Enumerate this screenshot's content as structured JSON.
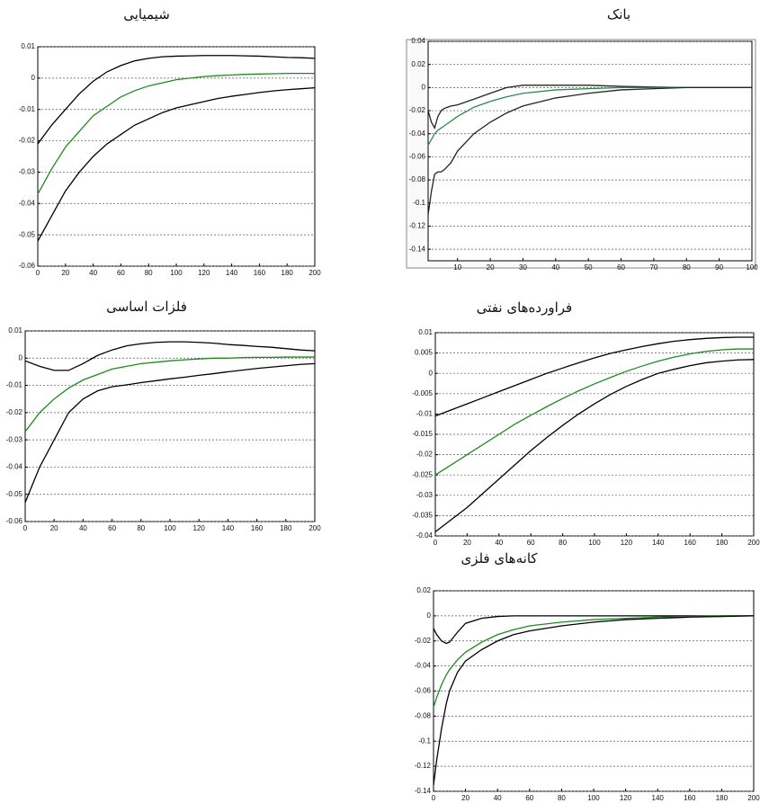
{
  "chart_data": [
    {
      "type": "line",
      "title": "شیمیایی",
      "grid": true,
      "x": [
        0,
        10,
        20,
        30,
        40,
        50,
        60,
        70,
        80,
        90,
        100,
        110,
        120,
        130,
        140,
        150,
        160,
        170,
        180,
        190,
        200
      ],
      "xlim": [
        0,
        200
      ],
      "xticks": [
        0,
        20,
        40,
        60,
        80,
        100,
        120,
        140,
        160,
        180,
        200
      ],
      "ylim": [
        -0.06,
        0.01
      ],
      "yticks": [
        -0.06,
        -0.05,
        -0.04,
        -0.03,
        -0.02,
        -0.01,
        0,
        0.01
      ],
      "series": [
        {
          "color": "#000000",
          "values": [
            -0.021,
            -0.015,
            -0.01,
            -0.005,
            -0.001,
            0.002,
            0.004,
            0.0055,
            0.0063,
            0.0068,
            0.007,
            0.0071,
            0.0072,
            0.0072,
            0.0072,
            0.0071,
            0.007,
            0.0068,
            0.0066,
            0.0065,
            0.0063
          ]
        },
        {
          "color": "#1e8a1e",
          "values": [
            -0.037,
            -0.029,
            -0.022,
            -0.017,
            -0.012,
            -0.009,
            -0.006,
            -0.004,
            -0.0025,
            -0.0015,
            -0.0005,
            0,
            0.0005,
            0.0008,
            0.001,
            0.0012,
            0.0013,
            0.0014,
            0.0015,
            0.0015,
            0.0015
          ]
        },
        {
          "color": "#000000",
          "values": [
            -0.052,
            -0.044,
            -0.036,
            -0.03,
            -0.025,
            -0.021,
            -0.018,
            -0.015,
            -0.013,
            -0.011,
            -0.0095,
            -0.0085,
            -0.0075,
            -0.0065,
            -0.0058,
            -0.0052,
            -0.0046,
            -0.0041,
            -0.0037,
            -0.0034,
            -0.0031
          ]
        }
      ]
    },
    {
      "type": "line",
      "title": "بانک",
      "grid": true,
      "x": [
        1,
        2,
        3,
        4,
        5,
        6,
        8,
        10,
        15,
        20,
        25,
        30,
        40,
        50,
        60,
        70,
        80,
        90,
        100
      ],
      "xlim": [
        1,
        100
      ],
      "xticks": [
        10,
        20,
        30,
        40,
        50,
        60,
        70,
        80,
        90,
        100
      ],
      "ylim": [
        -0.15,
        0.04
      ],
      "yticks": [
        -0.14,
        -0.12,
        -0.1,
        -0.08,
        -0.06,
        -0.04,
        -0.02,
        0,
        0.02,
        0.04
      ],
      "series": [
        {
          "color": "#222222",
          "values": [
            -0.02,
            -0.03,
            -0.035,
            -0.025,
            -0.02,
            -0.018,
            -0.016,
            -0.015,
            -0.01,
            -0.005,
            0,
            0.002,
            0.002,
            0.002,
            0.001,
            0.0005,
            0,
            0,
            0
          ]
        },
        {
          "color": "#2a8a4a",
          "values": [
            -0.05,
            -0.045,
            -0.04,
            -0.037,
            -0.035,
            -0.033,
            -0.029,
            -0.025,
            -0.017,
            -0.012,
            -0.008,
            -0.005,
            -0.002,
            -0.001,
            0,
            0,
            0,
            0,
            0
          ]
        },
        {
          "color": "#222222",
          "values": [
            -0.11,
            -0.09,
            -0.075,
            -0.073,
            -0.073,
            -0.071,
            -0.065,
            -0.055,
            -0.04,
            -0.03,
            -0.022,
            -0.016,
            -0.009,
            -0.005,
            -0.002,
            -0.001,
            0,
            0,
            0
          ]
        }
      ]
    },
    {
      "type": "line",
      "title": "فلزات اساسی",
      "grid": true,
      "x": [
        0,
        10,
        20,
        30,
        40,
        50,
        60,
        70,
        80,
        90,
        100,
        110,
        120,
        130,
        140,
        150,
        160,
        170,
        180,
        190,
        200
      ],
      "xlim": [
        0,
        200
      ],
      "xticks": [
        0,
        20,
        40,
        60,
        80,
        100,
        120,
        140,
        160,
        180,
        200
      ],
      "ylim": [
        -0.06,
        0.01
      ],
      "yticks": [
        -0.06,
        -0.05,
        -0.04,
        -0.03,
        -0.02,
        -0.01,
        0,
        0.01
      ],
      "series": [
        {
          "color": "#000000",
          "values": [
            -0.001,
            -0.003,
            -0.0045,
            -0.0045,
            -0.002,
            0.001,
            0.003,
            0.0045,
            0.0053,
            0.0058,
            0.006,
            0.006,
            0.0058,
            0.0055,
            0.005,
            0.0047,
            0.0043,
            0.004,
            0.0035,
            0.003,
            0.0027
          ]
        },
        {
          "color": "#1e8a1e",
          "values": [
            -0.027,
            -0.02,
            -0.015,
            -0.011,
            -0.008,
            -0.006,
            -0.004,
            -0.003,
            -0.002,
            -0.0015,
            -0.001,
            -0.0006,
            -0.0003,
            0,
            0,
            0.0002,
            0.0003,
            0.0003,
            0.0004,
            0.0004,
            0.0004
          ]
        },
        {
          "color": "#000000",
          "values": [
            -0.053,
            -0.04,
            -0.03,
            -0.02,
            -0.015,
            -0.012,
            -0.0105,
            -0.0098,
            -0.009,
            -0.0083,
            -0.0076,
            -0.007,
            -0.0063,
            -0.0057,
            -0.005,
            -0.0044,
            -0.0038,
            -0.0033,
            -0.0028,
            -0.0023,
            -0.002
          ]
        }
      ]
    },
    {
      "type": "line",
      "title": "فراورده‌های نفتی",
      "grid": true,
      "x": [
        0,
        10,
        20,
        30,
        40,
        50,
        60,
        70,
        80,
        90,
        100,
        110,
        120,
        130,
        140,
        150,
        160,
        170,
        180,
        190,
        200
      ],
      "xlim": [
        0,
        200
      ],
      "xticks": [
        0,
        20,
        40,
        60,
        80,
        100,
        120,
        140,
        160,
        180,
        200
      ],
      "ylim": [
        -0.04,
        0.01
      ],
      "yticks": [
        -0.04,
        -0.035,
        -0.03,
        -0.025,
        -0.02,
        -0.015,
        -0.01,
        -0.005,
        0,
        0.005,
        0.01
      ],
      "series": [
        {
          "color": "#000000",
          "values": [
            -0.0105,
            -0.009,
            -0.0075,
            -0.006,
            -0.0045,
            -0.003,
            -0.0015,
            0,
            0.0013,
            0.0026,
            0.0038,
            0.0049,
            0.0058,
            0.0066,
            0.0073,
            0.0079,
            0.0083,
            0.0086,
            0.0088,
            0.0089,
            0.0089
          ]
        },
        {
          "color": "#1e8a1e",
          "values": [
            -0.025,
            -0.0225,
            -0.02,
            -0.0175,
            -0.015,
            -0.0125,
            -0.0103,
            -0.0082,
            -0.0062,
            -0.0043,
            -0.0026,
            -0.001,
            0.0005,
            0.0018,
            0.003,
            0.004,
            0.0048,
            0.0054,
            0.0058,
            0.006,
            0.006
          ]
        },
        {
          "color": "#000000",
          "values": [
            -0.039,
            -0.036,
            -0.033,
            -0.0295,
            -0.026,
            -0.0225,
            -0.019,
            -0.0158,
            -0.0128,
            -0.01,
            -0.0075,
            -0.0052,
            -0.0032,
            -0.0015,
            0,
            0.001,
            0.0019,
            0.0026,
            0.003,
            0.0033,
            0.0034
          ]
        }
      ]
    },
    {
      "type": "line",
      "title": "کانه‌های فلزی",
      "grid": true,
      "x": [
        0,
        2,
        5,
        8,
        10,
        15,
        20,
        30,
        40,
        50,
        60,
        80,
        100,
        120,
        140,
        160,
        180,
        200
      ],
      "xlim": [
        0,
        200
      ],
      "xticks": [
        0,
        20,
        40,
        60,
        80,
        100,
        120,
        140,
        160,
        180,
        200
      ],
      "ylim": [
        -0.14,
        0.02
      ],
      "yticks": [
        -0.14,
        -0.12,
        -0.1,
        -0.08,
        -0.06,
        -0.04,
        -0.02,
        0,
        0.02
      ],
      "series": [
        {
          "color": "#000000",
          "values": [
            -0.01,
            -0.015,
            -0.02,
            -0.022,
            -0.021,
            -0.013,
            -0.006,
            -0.002,
            -0.0005,
            0,
            0,
            0,
            0,
            0,
            0,
            0,
            0,
            0
          ]
        },
        {
          "color": "#1e8a1e",
          "values": [
            -0.073,
            -0.065,
            -0.055,
            -0.047,
            -0.043,
            -0.035,
            -0.029,
            -0.021,
            -0.015,
            -0.011,
            -0.008,
            -0.005,
            -0.003,
            -0.002,
            -0.001,
            -0.0005,
            0,
            0
          ]
        },
        {
          "color": "#000000",
          "values": [
            -0.135,
            -0.115,
            -0.09,
            -0.07,
            -0.06,
            -0.045,
            -0.036,
            -0.027,
            -0.02,
            -0.015,
            -0.012,
            -0.008,
            -0.005,
            -0.003,
            -0.002,
            -0.001,
            -0.0005,
            0
          ]
        }
      ]
    }
  ]
}
